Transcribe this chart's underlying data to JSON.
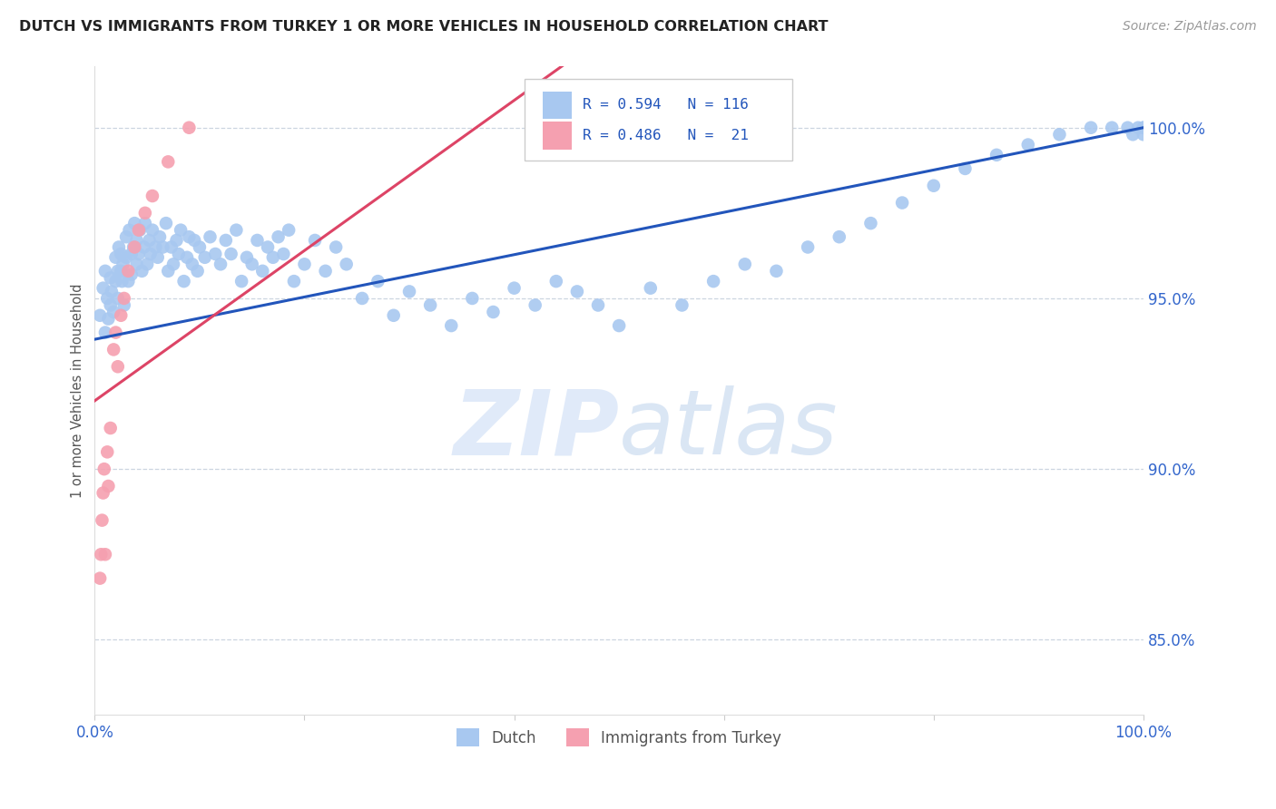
{
  "title": "DUTCH VS IMMIGRANTS FROM TURKEY 1 OR MORE VEHICLES IN HOUSEHOLD CORRELATION CHART",
  "source": "Source: ZipAtlas.com",
  "ylabel": "1 or more Vehicles in Household",
  "x_min": 0.0,
  "x_max": 1.0,
  "y_min": 0.828,
  "y_max": 1.018,
  "y_ticks": [
    0.85,
    0.9,
    0.95,
    1.0
  ],
  "y_tick_labels": [
    "85.0%",
    "90.0%",
    "95.0%",
    "100.0%"
  ],
  "blue_color": "#a8c8f0",
  "pink_color": "#f5a0b0",
  "blue_line_color": "#2255bb",
  "pink_line_color": "#dd4466",
  "legend_text_color": "#2255bb",
  "title_color": "#222222",
  "source_color": "#999999",
  "grid_color": "#ccd5e0",
  "background_color": "#ffffff",
  "watermark_color": "#ccddf5",
  "blue_intercept": 0.938,
  "blue_slope": 0.062,
  "pink_intercept": 0.92,
  "pink_slope": 0.22,
  "dutch_x": [
    0.005,
    0.008,
    0.01,
    0.01,
    0.012,
    0.013,
    0.015,
    0.015,
    0.016,
    0.018,
    0.02,
    0.02,
    0.022,
    0.022,
    0.023,
    0.025,
    0.025,
    0.026,
    0.027,
    0.028,
    0.03,
    0.03,
    0.032,
    0.033,
    0.035,
    0.035,
    0.037,
    0.038,
    0.04,
    0.04,
    0.042,
    0.043,
    0.045,
    0.047,
    0.048,
    0.05,
    0.052,
    0.053,
    0.055,
    0.058,
    0.06,
    0.062,
    0.065,
    0.068,
    0.07,
    0.073,
    0.075,
    0.078,
    0.08,
    0.082,
    0.085,
    0.088,
    0.09,
    0.093,
    0.095,
    0.098,
    0.1,
    0.105,
    0.11,
    0.115,
    0.12,
    0.125,
    0.13,
    0.135,
    0.14,
    0.145,
    0.15,
    0.155,
    0.16,
    0.165,
    0.17,
    0.175,
    0.18,
    0.185,
    0.19,
    0.2,
    0.21,
    0.22,
    0.23,
    0.24,
    0.255,
    0.27,
    0.285,
    0.3,
    0.32,
    0.34,
    0.36,
    0.38,
    0.4,
    0.42,
    0.44,
    0.46,
    0.48,
    0.5,
    0.53,
    0.56,
    0.59,
    0.62,
    0.65,
    0.68,
    0.71,
    0.74,
    0.77,
    0.8,
    0.83,
    0.86,
    0.89,
    0.92,
    0.95,
    0.97,
    0.985,
    0.99,
    0.995,
    1.0,
    1.0,
    1.0
  ],
  "dutch_y": [
    0.945,
    0.953,
    0.94,
    0.958,
    0.95,
    0.944,
    0.956,
    0.948,
    0.952,
    0.946,
    0.955,
    0.962,
    0.95,
    0.958,
    0.965,
    0.958,
    0.963,
    0.955,
    0.96,
    0.948,
    0.962,
    0.968,
    0.955,
    0.97,
    0.963,
    0.957,
    0.965,
    0.972,
    0.96,
    0.967,
    0.963,
    0.97,
    0.958,
    0.965,
    0.972,
    0.96,
    0.967,
    0.963,
    0.97,
    0.965,
    0.962,
    0.968,
    0.965,
    0.972,
    0.958,
    0.965,
    0.96,
    0.967,
    0.963,
    0.97,
    0.955,
    0.962,
    0.968,
    0.96,
    0.967,
    0.958,
    0.965,
    0.962,
    0.968,
    0.963,
    0.96,
    0.967,
    0.963,
    0.97,
    0.955,
    0.962,
    0.96,
    0.967,
    0.958,
    0.965,
    0.962,
    0.968,
    0.963,
    0.97,
    0.955,
    0.96,
    0.967,
    0.958,
    0.965,
    0.96,
    0.95,
    0.955,
    0.945,
    0.952,
    0.948,
    0.942,
    0.95,
    0.946,
    0.953,
    0.948,
    0.955,
    0.952,
    0.948,
    0.942,
    0.953,
    0.948,
    0.955,
    0.96,
    0.958,
    0.965,
    0.968,
    0.972,
    0.978,
    0.983,
    0.988,
    0.992,
    0.995,
    0.998,
    1.0,
    1.0,
    1.0,
    0.998,
    1.0,
    1.0,
    0.998,
    1.0
  ],
  "turkey_x": [
    0.005,
    0.006,
    0.007,
    0.008,
    0.009,
    0.01,
    0.012,
    0.013,
    0.015,
    0.018,
    0.02,
    0.022,
    0.025,
    0.028,
    0.032,
    0.038,
    0.042,
    0.048,
    0.055,
    0.07,
    0.09
  ],
  "turkey_y": [
    0.868,
    0.875,
    0.885,
    0.893,
    0.9,
    0.875,
    0.905,
    0.895,
    0.912,
    0.935,
    0.94,
    0.93,
    0.945,
    0.95,
    0.958,
    0.965,
    0.97,
    0.975,
    0.98,
    0.99,
    1.0
  ]
}
